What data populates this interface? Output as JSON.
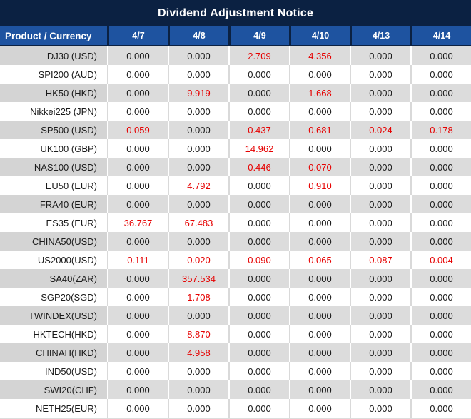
{
  "title": "Dividend Adjustment Notice",
  "table": {
    "product_header": "Product / Currency",
    "date_headers": [
      "4/7",
      "4/8",
      "4/9",
      "4/10",
      "4/13",
      "4/14"
    ],
    "rows": [
      {
        "product": "DJ30 (USD)",
        "values": [
          "0.000",
          "0.000",
          "2.709",
          "4.356",
          "0.000",
          "0.000"
        ]
      },
      {
        "product": "SPI200 (AUD)",
        "values": [
          "0.000",
          "0.000",
          "0.000",
          "0.000",
          "0.000",
          "0.000"
        ]
      },
      {
        "product": "HK50 (HKD)",
        "values": [
          "0.000",
          "9.919",
          "0.000",
          "1.668",
          "0.000",
          "0.000"
        ]
      },
      {
        "product": "Nikkei225 (JPN)",
        "values": [
          "0.000",
          "0.000",
          "0.000",
          "0.000",
          "0.000",
          "0.000"
        ]
      },
      {
        "product": "SP500 (USD)",
        "values": [
          "0.059",
          "0.000",
          "0.437",
          "0.681",
          "0.024",
          "0.178"
        ]
      },
      {
        "product": "UK100 (GBP)",
        "values": [
          "0.000",
          "0.000",
          "14.962",
          "0.000",
          "0.000",
          "0.000"
        ]
      },
      {
        "product": "NAS100 (USD)",
        "values": [
          "0.000",
          "0.000",
          "0.446",
          "0.070",
          "0.000",
          "0.000"
        ]
      },
      {
        "product": "EU50 (EUR)",
        "values": [
          "0.000",
          "4.792",
          "0.000",
          "0.910",
          "0.000",
          "0.000"
        ]
      },
      {
        "product": "FRA40 (EUR)",
        "values": [
          "0.000",
          "0.000",
          "0.000",
          "0.000",
          "0.000",
          "0.000"
        ]
      },
      {
        "product": "ES35 (EUR)",
        "values": [
          "36.767",
          "67.483",
          "0.000",
          "0.000",
          "0.000",
          "0.000"
        ]
      },
      {
        "product": "CHINA50(USD)",
        "values": [
          "0.000",
          "0.000",
          "0.000",
          "0.000",
          "0.000",
          "0.000"
        ]
      },
      {
        "product": "US2000(USD)",
        "values": [
          "0.111",
          "0.020",
          "0.090",
          "0.065",
          "0.087",
          "0.004"
        ]
      },
      {
        "product": "SA40(ZAR)",
        "values": [
          "0.000",
          "357.534",
          "0.000",
          "0.000",
          "0.000",
          "0.000"
        ]
      },
      {
        "product": "SGP20(SGD)",
        "values": [
          "0.000",
          "1.708",
          "0.000",
          "0.000",
          "0.000",
          "0.000"
        ]
      },
      {
        "product": "TWINDEX(USD)",
        "values": [
          "0.000",
          "0.000",
          "0.000",
          "0.000",
          "0.000",
          "0.000"
        ]
      },
      {
        "product": "HKTECH(HKD)",
        "values": [
          "0.000",
          "8.870",
          "0.000",
          "0.000",
          "0.000",
          "0.000"
        ]
      },
      {
        "product": "CHINAH(HKD)",
        "values": [
          "0.000",
          "4.958",
          "0.000",
          "0.000",
          "0.000",
          "0.000"
        ]
      },
      {
        "product": "IND50(USD)",
        "values": [
          "0.000",
          "0.000",
          "0.000",
          "0.000",
          "0.000",
          "0.000"
        ]
      },
      {
        "product": "SWI20(CHF)",
        "values": [
          "0.000",
          "0.000",
          "0.000",
          "0.000",
          "0.000",
          "0.000"
        ]
      },
      {
        "product": "NETH25(EUR)",
        "values": [
          "0.000",
          "0.000",
          "0.000",
          "0.000",
          "0.000",
          "0.000"
        ]
      }
    ]
  },
  "colors": {
    "title_bar_bg": "#0b2142",
    "header_bg": "#1e53a0",
    "header_divider": "#0b2142",
    "gray_row_product_bg": "#d4d4d4",
    "gray_row_value_bg": "#dcdcdc",
    "white_row_bg": "#ffffff",
    "zero_value_text": "#1a1a1a",
    "dividend_value_text": "#e60000",
    "header_text": "#ffffff"
  }
}
